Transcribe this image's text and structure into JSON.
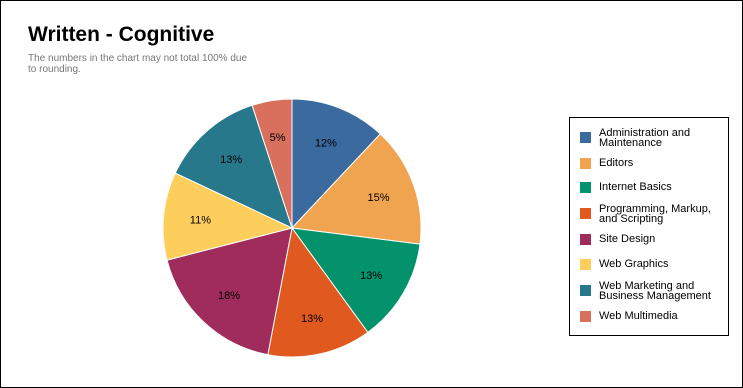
{
  "title": "Written - Cognitive",
  "subtitle": "The numbers in the chart may not total 100% due to rounding.",
  "chart_data": {
    "type": "pie",
    "title": "Written - Cognitive",
    "start_angle_deg": 0,
    "direction": "clockwise",
    "legend_position": "right",
    "slices": [
      {
        "label": "Administration and Maintenance",
        "value": 12,
        "display": "12%",
        "color": "#3b6a9e"
      },
      {
        "label": "Editors",
        "value": 15,
        "display": "15%",
        "color": "#f0a44f"
      },
      {
        "label": "Internet Basics",
        "value": 13,
        "display": "13%",
        "color": "#03926b"
      },
      {
        "label": "Programming, Markup, and Scripting",
        "value": 13,
        "display": "13%",
        "color": "#e05a20"
      },
      {
        "label": "Site Design",
        "value": 18,
        "display": "18%",
        "color": "#a02c5b"
      },
      {
        "label": "Web Graphics",
        "value": 11,
        "display": "11%",
        "color": "#fece5c"
      },
      {
        "label": "Web Marketing and Business Management",
        "value": 13,
        "display": "13%",
        "color": "#27788a"
      },
      {
        "label": "Web Multimedia",
        "value": 5,
        "display": "5%",
        "color": "#d8705d"
      }
    ]
  }
}
